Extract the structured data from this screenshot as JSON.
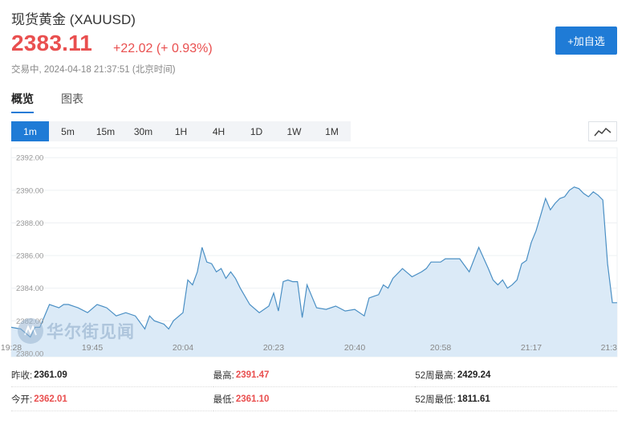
{
  "header": {
    "title": "现货黄金  (XAUUSD)",
    "price": "2383.11",
    "change": "+22.02 (+ 0.93%)",
    "status": "交易中, 2024-04-18 21:37:51 (北京时间)",
    "add_button": "+加自选"
  },
  "tabs": [
    {
      "label": "概览",
      "active": true
    },
    {
      "label": "图表",
      "active": false
    }
  ],
  "periods": [
    {
      "label": "1m",
      "active": true
    },
    {
      "label": "5m",
      "active": false
    },
    {
      "label": "15m",
      "active": false
    },
    {
      "label": "30m",
      "active": false
    },
    {
      "label": "1H",
      "active": false
    },
    {
      "label": "4H",
      "active": false
    },
    {
      "label": "1D",
      "active": false
    },
    {
      "label": "1W",
      "active": false
    },
    {
      "label": "1M",
      "active": false
    }
  ],
  "chart_type_icon": "line-chart-icon",
  "watermark": {
    "text": "华尔街见闻",
    "icon": "wallstreetcn-logo-icon"
  },
  "colors": {
    "accent": "#1f7bd6",
    "up": "#e94f4f",
    "line": "#4a8fc4",
    "fill": "#dbeaf7"
  },
  "chart_data": {
    "type": "area",
    "y_ticks": [
      "2392.00",
      "2390.00",
      "2388.00",
      "2386.00",
      "2384.00",
      "2382.00",
      "2380.00"
    ],
    "ylim": [
      2379.8,
      2392.6
    ],
    "x_ticks": [
      "19:28",
      "19:45",
      "20:04",
      "20:23",
      "20:40",
      "20:58",
      "21:17",
      "21:3"
    ],
    "x_tick_minutes": [
      0,
      17,
      36,
      55,
      72,
      90,
      109,
      126
    ],
    "x_range_minutes": [
      0,
      127
    ],
    "grid": true,
    "x": [
      0,
      2,
      4,
      5,
      6,
      8,
      10,
      11,
      12,
      14,
      16,
      18,
      20,
      22,
      24,
      26,
      28,
      29,
      30,
      32,
      33,
      34,
      36,
      37,
      38,
      39,
      40,
      41,
      42,
      43,
      44,
      45,
      46,
      47,
      48,
      50,
      52,
      54,
      55,
      56,
      57,
      58,
      59,
      60,
      61,
      62,
      63,
      64,
      66,
      68,
      70,
      72,
      74,
      75,
      76,
      77,
      78,
      79,
      80,
      82,
      84,
      86,
      87,
      88,
      90,
      91,
      92,
      94,
      96,
      98,
      100,
      101,
      102,
      103,
      104,
      105,
      106,
      107,
      108,
      109,
      110,
      111,
      112,
      113,
      114,
      115,
      116,
      117,
      118,
      119,
      120,
      121,
      122,
      123,
      124,
      125,
      126,
      127
    ],
    "values": [
      2381.6,
      2381.5,
      2381.0,
      2381.6,
      2381.6,
      2383.0,
      2382.8,
      2383.0,
      2383.0,
      2382.8,
      2382.5,
      2383.0,
      2382.8,
      2382.3,
      2382.5,
      2382.3,
      2381.5,
      2382.3,
      2382.0,
      2381.8,
      2381.5,
      2382.0,
      2382.5,
      2384.5,
      2384.2,
      2385.0,
      2386.5,
      2385.6,
      2385.5,
      2385.0,
      2385.2,
      2384.6,
      2385.0,
      2384.6,
      2384.0,
      2383.0,
      2382.5,
      2382.9,
      2383.7,
      2382.6,
      2384.4,
      2384.5,
      2384.4,
      2384.4,
      2382.2,
      2384.2,
      2383.5,
      2382.8,
      2382.7,
      2382.9,
      2382.6,
      2382.7,
      2382.3,
      2383.4,
      2383.5,
      2383.6,
      2384.2,
      2384.0,
      2384.6,
      2385.2,
      2384.7,
      2385.0,
      2385.2,
      2385.6,
      2385.6,
      2385.8,
      2385.8,
      2385.8,
      2385.0,
      2386.5,
      2385.2,
      2384.5,
      2384.2,
      2384.5,
      2384.0,
      2384.2,
      2384.5,
      2385.5,
      2385.7,
      2386.8,
      2387.5,
      2388.5,
      2389.5,
      2388.8,
      2389.2,
      2389.5,
      2389.6,
      2390.0,
      2390.2,
      2390.1,
      2389.8,
      2389.6,
      2389.9,
      2389.7,
      2389.4,
      2385.5,
      2383.11,
      2383.11
    ]
  },
  "stats": [
    [
      {
        "label": "昨收:",
        "value": "2361.09",
        "color": "dark"
      },
      {
        "label": "最高:",
        "value": "2391.47",
        "color": "red"
      },
      {
        "label": "52周最高:",
        "value": "2429.24",
        "color": "dark"
      }
    ],
    [
      {
        "label": "今开:",
        "value": "2362.01",
        "color": "red"
      },
      {
        "label": "最低:",
        "value": "2361.10",
        "color": "red"
      },
      {
        "label": "52周最低:",
        "value": "1811.61",
        "color": "dark"
      }
    ]
  ]
}
